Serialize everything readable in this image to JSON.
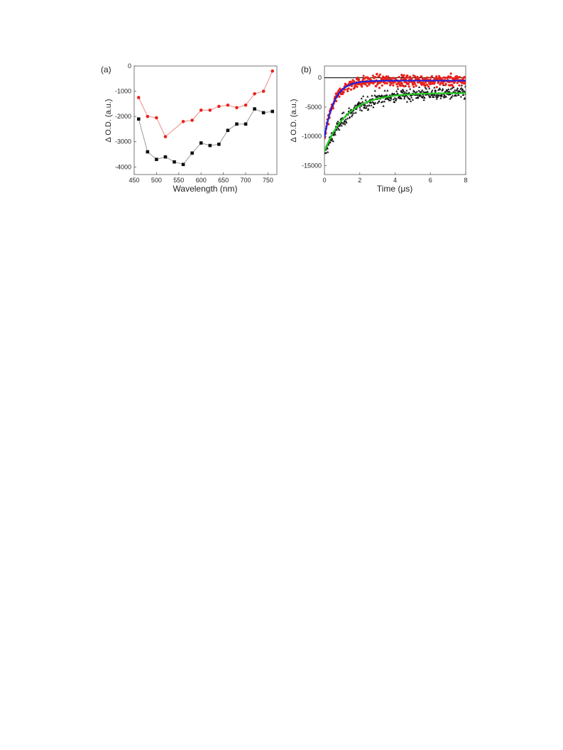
{
  "chart_data": [
    {
      "panel_label": "(a)",
      "type": "line",
      "xlabel": "Wavelength (nm)",
      "ylabel": "Δ O.D. (a.u.)",
      "xlim": [
        450,
        770
      ],
      "ylim": [
        -4300,
        0
      ],
      "xticks": [
        450,
        500,
        550,
        600,
        650,
        700,
        750
      ],
      "yticks": [
        0,
        -1000,
        -2000,
        -3000,
        -4000
      ],
      "grid": false,
      "series": [
        {
          "marker": "square",
          "color": "#111111",
          "line_color": "#9a9a9a",
          "x": [
            460,
            480,
            500,
            520,
            540,
            560,
            580,
            600,
            620,
            640,
            660,
            680,
            700,
            720,
            740,
            760
          ],
          "y": [
            -2100,
            -3400,
            -3700,
            -3600,
            -3800,
            -3900,
            -3450,
            -3050,
            -3150,
            -3100,
            -2550,
            -2300,
            -2300,
            -1700,
            -1850,
            -1800
          ]
        },
        {
          "marker": "circle",
          "color": "#e8231b",
          "line_color": "#f08a85",
          "x": [
            460,
            480,
            500,
            520,
            560,
            580,
            600,
            620,
            640,
            660,
            680,
            700,
            720,
            740,
            760
          ],
          "y": [
            -1250,
            -2000,
            -2050,
            -2800,
            -2200,
            -2150,
            -1750,
            -1750,
            -1600,
            -1550,
            -1650,
            -1550,
            -1100,
            -1000,
            -200
          ]
        }
      ]
    },
    {
      "panel_label": "(b)",
      "type": "scatter",
      "xlabel": "Time (μs)",
      "ylabel": "Δ O.D. (a.u.)",
      "xlim": [
        0,
        8
      ],
      "ylim": [
        -16500,
        2000
      ],
      "xticks": [
        0,
        2,
        4,
        6,
        8
      ],
      "yticks": [
        0,
        -5000,
        -10000,
        -15000
      ],
      "grid": false,
      "zero_line": true,
      "series": [
        {
          "marker": "circle",
          "color": "#e8231b",
          "model": "exp",
          "y0": -10500,
          "y_inf": -500,
          "tau": 0.55,
          "noise": 1100,
          "n_points": 420,
          "t_max": 8
        },
        {
          "marker": "triangle",
          "color": "#111111",
          "model": "exp",
          "y0": -13000,
          "y_inf": -2600,
          "tau": 1.3,
          "noise": 1300,
          "n_points": 420,
          "t_max": 8
        }
      ],
      "fits": [
        {
          "color": "#1f1fe0",
          "y0": -10200,
          "y_inf": -500,
          "tau": 0.55
        },
        {
          "color": "#22cc22",
          "y0": -12500,
          "y_inf": -2600,
          "tau": 1.3
        }
      ]
    }
  ]
}
